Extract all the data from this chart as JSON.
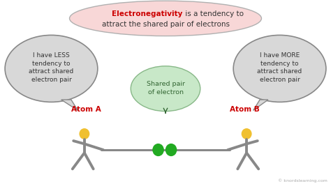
{
  "bg_color": "#ffffff",
  "title_box_color": "#f8d7d7",
  "title_box_edge": "#b0b0b0",
  "title_text_bold": "Electronegativity",
  "title_text_rest": " is a tendency to\nattract the shared pair of electrons",
  "title_bold_color": "#cc0000",
  "title_normal_color": "#333333",
  "speech_bubble_color": "#d8d8d8",
  "speech_bubble_edge": "#888888",
  "left_bubble_text": "I have LESS\ntendency to\nattract shared\nelectron pair",
  "right_bubble_text": "I have MORE\ntendency to\nattract shared\nelectron pair",
  "center_bubble_color": "#c8e8c8",
  "center_bubble_edge": "#88b888",
  "center_bubble_text": "Shared pair\nof electron",
  "atom_a_label": "Atom A",
  "atom_b_label": "Atom B",
  "atom_label_color": "#cc0000",
  "figure_color": "#888888",
  "head_color": "#f0c030",
  "electron_color": "#22aa22",
  "watermark": "© knordslearning.com",
  "watermark_color": "#aaaaaa",
  "xlim": [
    0,
    10
  ],
  "ylim": [
    0,
    5.5
  ]
}
